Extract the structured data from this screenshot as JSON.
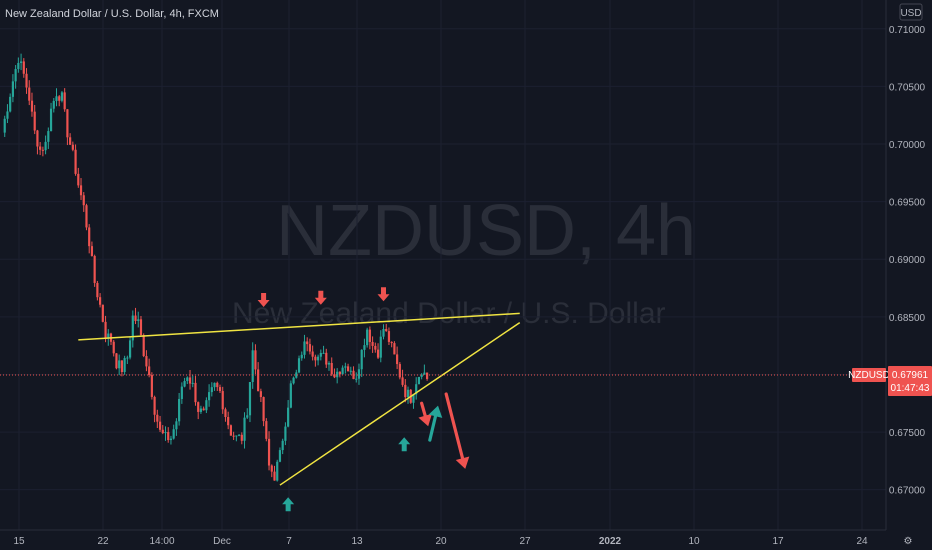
{
  "header": {
    "title": "New Zealand Dollar / U.S. Dollar, 4h, FXCM",
    "currency": "USD"
  },
  "watermark": {
    "symbol": "NZDUSD, 4h",
    "name": "New Zealand Dollar / U.S. Dollar"
  },
  "colors": {
    "background": "#131722",
    "up": "#26a69a",
    "down": "#ef5350",
    "trendline": "#f0e442",
    "axis_text": "#b2b5be",
    "price_badge": "#ef5350"
  },
  "price_badge": {
    "symbol": "NZDUSD",
    "price": "0.67961",
    "countdown": "01:47:43"
  },
  "chart_data": {
    "type": "candlestick",
    "interval": "4h",
    "y_ticks": [
      "0.71000",
      "0.70500",
      "0.70000",
      "0.69500",
      "0.69000",
      "0.68500",
      "0.68000",
      "0.67500",
      "0.67000"
    ],
    "x_ticks": [
      "15",
      "22",
      "14:00",
      "Dec",
      "7",
      "13",
      "20",
      "27",
      "2022",
      "10",
      "17",
      "24"
    ],
    "ylim": [
      0.6665,
      0.7125
    ],
    "last_price": 0.67961,
    "path": [
      [
        0,
        0.701
      ],
      [
        2,
        0.7055
      ],
      [
        3,
        0.7075
      ],
      [
        4,
        0.706
      ],
      [
        5,
        0.704
      ],
      [
        6,
        0.701
      ],
      [
        7,
        0.6995
      ],
      [
        8,
        0.7
      ],
      [
        9,
        0.703
      ],
      [
        10,
        0.7045
      ],
      [
        11,
        0.704
      ],
      [
        12,
        0.701
      ],
      [
        13,
        0.699
      ],
      [
        14,
        0.6965
      ],
      [
        15,
        0.6945
      ],
      [
        16,
        0.6915
      ],
      [
        17,
        0.688
      ],
      [
        18,
        0.686
      ],
      [
        19,
        0.6835
      ],
      [
        20,
        0.683
      ],
      [
        21,
        0.681
      ],
      [
        22,
        0.6805
      ],
      [
        23,
        0.6815
      ],
      [
        24,
        0.685
      ],
      [
        25,
        0.6845
      ],
      [
        26,
        0.682
      ],
      [
        27,
        0.68
      ],
      [
        28,
        0.677
      ],
      [
        29,
        0.675
      ],
      [
        30,
        0.6745
      ],
      [
        31,
        0.6745
      ],
      [
        32,
        0.676
      ],
      [
        33,
        0.679
      ],
      [
        34,
        0.68
      ],
      [
        35,
        0.679
      ],
      [
        36,
        0.677
      ],
      [
        37,
        0.6765
      ],
      [
        38,
        0.678
      ],
      [
        39,
        0.679
      ],
      [
        40,
        0.6785
      ],
      [
        41,
        0.6765
      ],
      [
        42,
        0.675
      ],
      [
        43,
        0.6745
      ],
      [
        44,
        0.6745
      ],
      [
        45,
        0.677
      ],
      [
        46,
        0.682
      ],
      [
        47,
        0.679
      ],
      [
        48,
        0.676
      ],
      [
        49,
        0.672
      ],
      [
        50,
        0.6712
      ],
      [
        51,
        0.673
      ],
      [
        52,
        0.676
      ],
      [
        53,
        0.679
      ],
      [
        54,
        0.68
      ],
      [
        55,
        0.682
      ],
      [
        56,
        0.683
      ],
      [
        57,
        0.682
      ],
      [
        58,
        0.6815
      ],
      [
        59,
        0.6815
      ],
      [
        60,
        0.681
      ],
      [
        61,
        0.68
      ],
      [
        62,
        0.6805
      ],
      [
        63,
        0.681
      ],
      [
        64,
        0.68
      ],
      [
        65,
        0.68
      ],
      [
        66,
        0.682
      ],
      [
        67,
        0.684
      ],
      [
        68,
        0.6825
      ],
      [
        69,
        0.682
      ],
      [
        70,
        0.684
      ],
      [
        71,
        0.683
      ],
      [
        72,
        0.6815
      ],
      [
        73,
        0.68
      ],
      [
        74,
        0.6785
      ],
      [
        75,
        0.678
      ],
      [
        76,
        0.6795
      ],
      [
        77,
        0.6805
      ],
      [
        78,
        0.6796
      ]
    ],
    "lines": [
      {
        "name": "upper",
        "from": [
          14.0,
          0.683
        ],
        "to": [
          95.0,
          0.6853
        ]
      },
      {
        "name": "lower",
        "from": [
          51.0,
          0.6704
        ],
        "to": [
          95.0,
          0.6845
        ]
      }
    ],
    "arrows": [
      {
        "color": "down",
        "direction": "down",
        "x": 48.0,
        "y": 0.6862
      },
      {
        "color": "down",
        "direction": "down",
        "x": 58.5,
        "y": 0.6864
      },
      {
        "color": "down",
        "direction": "down",
        "x": 70.0,
        "y": 0.6867
      },
      {
        "color": "up",
        "direction": "up",
        "x": 52.5,
        "y": 0.669
      },
      {
        "color": "up",
        "direction": "up",
        "x": 73.8,
        "y": 0.6742
      }
    ],
    "projection": [
      {
        "color": "down",
        "from": [
          77.0,
          0.6775
        ],
        "to": [
          78.2,
          0.6755
        ]
      },
      {
        "color": "up",
        "from": [
          78.5,
          0.6743
        ],
        "to": [
          80.0,
          0.6773
        ]
      },
      {
        "color": "down",
        "from": [
          81.5,
          0.6783
        ],
        "to": [
          85.0,
          0.6718
        ]
      }
    ]
  }
}
